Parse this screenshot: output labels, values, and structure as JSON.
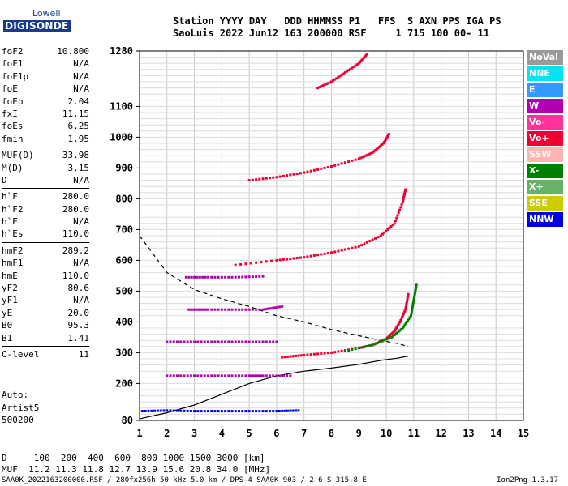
{
  "logo": {
    "line1": "Lowell",
    "line2": "DIGISONDE"
  },
  "header": {
    "line1": "Station YYYY DAY   DDD HHMMSS P1   FFS  S AXN PPS IGA PS",
    "line2": "SaoLuis 2022 Jun12 163 200000 RSF     1 715 100 00- 11"
  },
  "params": [
    {
      "k": "foF2",
      "v": "10.800"
    },
    {
      "k": "foF1",
      "v": "N/A"
    },
    {
      "k": "foF1p",
      "v": "N/A"
    },
    {
      "k": "foE",
      "v": "N/A"
    },
    {
      "k": "foEp",
      "v": "2.04"
    },
    {
      "k": "fxI",
      "v": "11.15"
    },
    {
      "k": "foEs",
      "v": "6.25"
    },
    {
      "k": "fmin",
      "v": "1.95"
    },
    {
      "k": "MUF(D)",
      "v": "33.98",
      "sep": true
    },
    {
      "k": "M(D)",
      "v": "3.15"
    },
    {
      "k": "D",
      "v": "N/A"
    },
    {
      "k": "h`F",
      "v": "280.0",
      "sep": true
    },
    {
      "k": "h`F2",
      "v": "280.0"
    },
    {
      "k": "h`E",
      "v": "N/A"
    },
    {
      "k": "h`Es",
      "v": "110.0"
    },
    {
      "k": "hmF2",
      "v": "289.2",
      "sep": true
    },
    {
      "k": "hmF1",
      "v": "N/A"
    },
    {
      "k": "hmE",
      "v": "110.0"
    },
    {
      "k": "yF2",
      "v": "80.6"
    },
    {
      "k": "yF1",
      "v": "N/A"
    },
    {
      "k": "yE",
      "v": "20.0"
    },
    {
      "k": "B0",
      "v": "95.3"
    },
    {
      "k": "B1",
      "v": "1.41"
    },
    {
      "k": "C-level",
      "v": "11",
      "sep": true
    }
  ],
  "auto": {
    "line1": "Auto:",
    "line2": "Artist5",
    "line3": "500200"
  },
  "footer": {
    "line1": "D     100  200  400  600  800 1000 1500 3000 [km]",
    "line2": "MUF  11.2 11.3 11.8 12.7 13.9 15.6 20.8 34.0 [MHz]",
    "line3": "SAA0K_2022163200000.RSF / 280fx256h 50 kHz 5.0 km / DPS-4 SAA0K 903 / 2.6 S 315.8 E",
    "version": "Ion2Png 1.3.17"
  },
  "legend": [
    {
      "label": "NoVal",
      "color": "#9a9a9a"
    },
    {
      "label": "NNE",
      "color": "#00e5ee"
    },
    {
      "label": "E",
      "color": "#3399ff"
    },
    {
      "label": "W",
      "color": "#b000b0"
    },
    {
      "label": "Vo-",
      "color": "#ff3399"
    },
    {
      "label": "Vo+",
      "color": "#ee0033"
    },
    {
      "label": "SSW",
      "color": "#ffb3b3"
    },
    {
      "label": "X-",
      "color": "#008000"
    },
    {
      "label": "X+",
      "color": "#66b266"
    },
    {
      "label": "SSE",
      "color": "#cccc00"
    },
    {
      "label": "NNW",
      "color": "#0000dd"
    }
  ],
  "chart_data": {
    "type": "scatter",
    "xlim": [
      1,
      15
    ],
    "ylim": [
      80,
      1280
    ],
    "x_ticks": [
      1,
      2,
      3,
      4,
      5,
      6,
      7,
      8,
      9,
      10,
      11,
      12,
      13,
      14,
      15
    ],
    "y_ticks": [
      80,
      200,
      300,
      400,
      500,
      600,
      700,
      800,
      900,
      1000,
      1100,
      1280
    ],
    "grid": true,
    "series": [
      {
        "name": "O-trace F2",
        "color": "#ee0033",
        "points": [
          [
            6.2,
            285
          ],
          [
            7,
            292
          ],
          [
            8,
            300
          ],
          [
            9,
            315
          ],
          [
            9.5,
            325
          ],
          [
            10,
            345
          ],
          [
            10.3,
            370
          ],
          [
            10.5,
            400
          ],
          [
            10.7,
            440
          ],
          [
            10.8,
            490
          ]
        ]
      },
      {
        "name": "X-trace F2",
        "color": "#008000",
        "points": [
          [
            8.5,
            305
          ],
          [
            9.5,
            325
          ],
          [
            10.2,
            350
          ],
          [
            10.6,
            380
          ],
          [
            10.9,
            420
          ],
          [
            11.0,
            470
          ],
          [
            11.1,
            520
          ]
        ]
      },
      {
        "name": "F2 2-hop",
        "color": "#ee0033",
        "points": [
          [
            4.5,
            585
          ],
          [
            6,
            600
          ],
          [
            7,
            610
          ],
          [
            8,
            625
          ],
          [
            9,
            645
          ],
          [
            9.8,
            680
          ],
          [
            10.3,
            720
          ],
          [
            10.6,
            790
          ],
          [
            10.7,
            830
          ]
        ]
      },
      {
        "name": "F2 3-hop",
        "color": "#ee0033",
        "points": [
          [
            5,
            860
          ],
          [
            6,
            870
          ],
          [
            7,
            885
          ],
          [
            8,
            905
          ],
          [
            9,
            930
          ],
          [
            9.5,
            950
          ],
          [
            9.9,
            980
          ],
          [
            10.1,
            1010
          ]
        ]
      },
      {
        "name": "F2 4-hop",
        "color": "#ee0033",
        "points": [
          [
            7.5,
            1160
          ],
          [
            8,
            1180
          ],
          [
            8.5,
            1210
          ],
          [
            9,
            1240
          ],
          [
            9.3,
            1270
          ]
        ]
      },
      {
        "name": "Es 1-hop",
        "color": "#0000dd",
        "points": [
          [
            1.1,
            110
          ],
          [
            2,
            112
          ],
          [
            3,
            110
          ],
          [
            4,
            110
          ],
          [
            5,
            110
          ],
          [
            6,
            110
          ],
          [
            6.8,
            112
          ]
        ]
      },
      {
        "name": "Es 2-hop",
        "color": "#b000b0",
        "points": [
          [
            2,
            225
          ],
          [
            3,
            225
          ],
          [
            4,
            225
          ],
          [
            5,
            225
          ],
          [
            5.5,
            225
          ],
          [
            6.5,
            225
          ]
        ]
      },
      {
        "name": "Es 3-hop",
        "color": "#b000b0",
        "points": [
          [
            2,
            335
          ],
          [
            3,
            335
          ],
          [
            4,
            335
          ],
          [
            5,
            335
          ],
          [
            6,
            335
          ]
        ]
      },
      {
        "name": "Es 4-hop",
        "color": "#b000b0",
        "points": [
          [
            2.8,
            440
          ],
          [
            3.5,
            440
          ],
          [
            4.5,
            440
          ],
          [
            5.5,
            440
          ],
          [
            6.2,
            450
          ]
        ]
      },
      {
        "name": "Es 5-hop",
        "color": "#b000b0",
        "points": [
          [
            2.7,
            545
          ],
          [
            3.5,
            545
          ],
          [
            4.5,
            545
          ],
          [
            5.5,
            548
          ]
        ]
      }
    ],
    "profile": {
      "points": [
        [
          1,
          85
        ],
        [
          2,
          105
        ],
        [
          3,
          130
        ],
        [
          4,
          165
        ],
        [
          5,
          200
        ],
        [
          6,
          225
        ],
        [
          7,
          240
        ],
        [
          8,
          250
        ],
        [
          9,
          262
        ],
        [
          9.8,
          275
        ],
        [
          10.4,
          282
        ],
        [
          10.8,
          289
        ]
      ],
      "color": "#000000"
    },
    "muf_curve": {
      "points": [
        [
          1,
          680
        ],
        [
          2,
          560
        ],
        [
          3,
          505
        ],
        [
          4,
          475
        ],
        [
          5,
          450
        ],
        [
          6,
          420
        ],
        [
          7,
          400
        ],
        [
          8,
          375
        ],
        [
          9,
          355
        ],
        [
          9.8,
          340
        ],
        [
          10.4,
          330
        ],
        [
          10.8,
          320
        ]
      ],
      "color": "#000000",
      "dash": true
    }
  }
}
